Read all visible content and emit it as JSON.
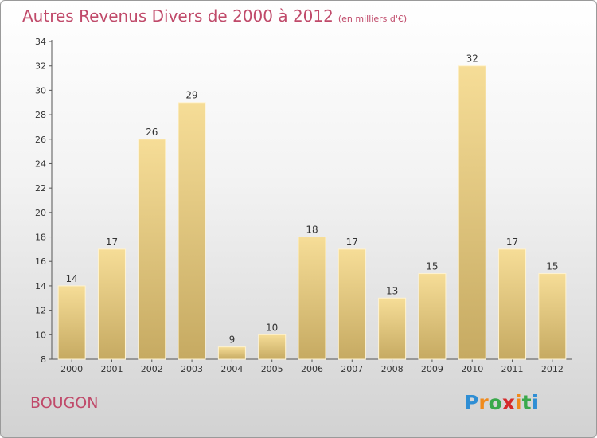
{
  "header": {
    "title": "Autres Revenus Divers de 2000 à 2012",
    "subtitle": "(en milliers d'€)"
  },
  "footer": {
    "city": "BOUGON",
    "logo": "Proxiti"
  },
  "colors": {
    "title": "#c04a6a",
    "bar_light": "#f5dc96",
    "bar_dark": "#c9ad64",
    "axis": "#555555"
  },
  "chart_data": {
    "type": "bar",
    "title": "Autres Revenus Divers de 2000 à 2012",
    "subtitle": "(en milliers d'€)",
    "categories": [
      "2000",
      "2001",
      "2002",
      "2003",
      "2004",
      "2005",
      "2006",
      "2007",
      "2008",
      "2009",
      "2010",
      "2011",
      "2012"
    ],
    "values": [
      14,
      17,
      26,
      29,
      9,
      10,
      18,
      17,
      13,
      15,
      32,
      17,
      15
    ],
    "ylim": [
      8,
      34
    ],
    "yticks": [
      8,
      10,
      12,
      14,
      16,
      18,
      20,
      22,
      24,
      26,
      28,
      30,
      32,
      34
    ],
    "grid": false,
    "xlabel": "",
    "ylabel": ""
  }
}
